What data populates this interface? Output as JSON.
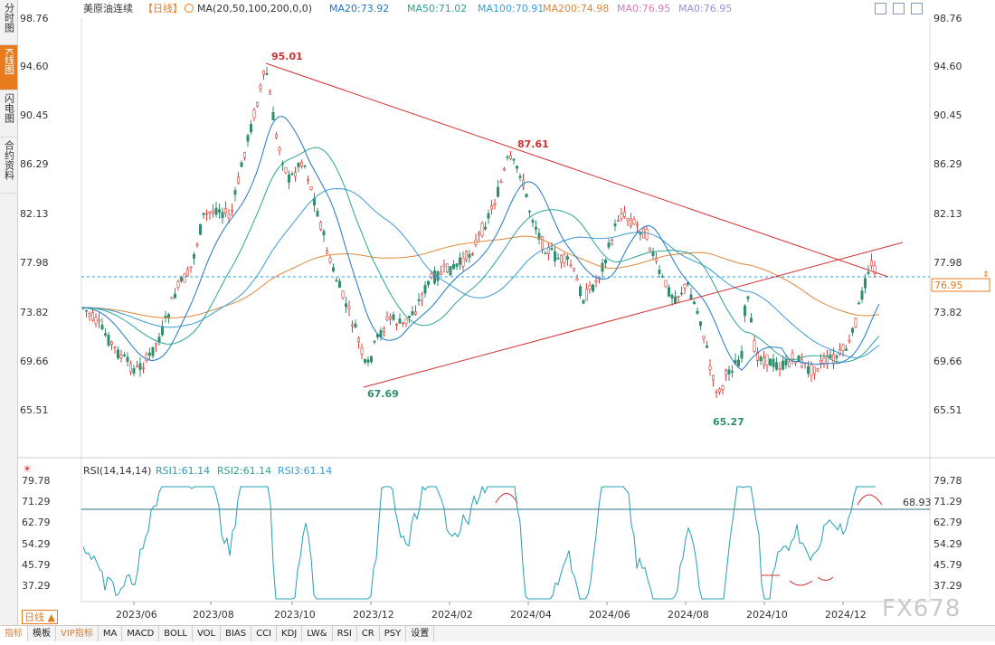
{
  "sidebar": {
    "tabs": [
      {
        "label": "分时图"
      },
      {
        "label": "K线图"
      },
      {
        "label": "闪电图"
      },
      {
        "label": "合约资料"
      }
    ]
  },
  "header": {
    "instrument": "美原油连续",
    "period": "【日线】",
    "ma_label": "MA(20,50,100,200,0,0)",
    "ma20": "MA20:73.92",
    "ma50": "MA50:71.02",
    "ma100": "MA100:70.91",
    "ma200": "MA200:74.98",
    "ma0a": "MA0:76.95",
    "ma0b": "MA0:76.95"
  },
  "price_axis": {
    "ticks": [
      "98.76",
      "94.60",
      "90.45",
      "86.29",
      "82.13",
      "77.98",
      "73.82",
      "69.66",
      "65.51"
    ],
    "current_price": "76.95"
  },
  "annotations": {
    "high1": "95.01",
    "high2": "87.61",
    "low1": "67.69",
    "low2": "65.27"
  },
  "rsi": {
    "label": "RSI(14,14,14)",
    "rsi1": "RSI1:61.14",
    "rsi2": "RSI2:61.14",
    "rsi3": "RSI3:61.14",
    "ticks": [
      "79.78",
      "71.29",
      "62.79",
      "54.29",
      "45.79",
      "37.29"
    ],
    "level_line": "68.93"
  },
  "time_axis": [
    "2023/06",
    "2023/08",
    "2023/10",
    "2023/12",
    "2024/02",
    "2024/04",
    "2024/06",
    "2024/08",
    "2024/10",
    "2024/12"
  ],
  "period_button": "日线 ▲",
  "bottom_tabs": [
    "指标",
    "模板",
    "VIP指标",
    "MA",
    "MACD",
    "BOLL",
    "VOL",
    "BIAS",
    "CCI",
    "KDJ",
    "LW&",
    "RSI",
    "CR",
    "PSY",
    "设置"
  ],
  "watermark": "FX678",
  "colors": {
    "up": "#d9413a",
    "down": "#2f8f6e",
    "ma20": "#1f77c9",
    "ma50": "#2ba58e",
    "ma100": "#3a9bd6",
    "ma200": "#e0873a",
    "trendline": "#d32f2f",
    "rsi": "#21a0b5",
    "accent": "#e87b1e"
  }
}
